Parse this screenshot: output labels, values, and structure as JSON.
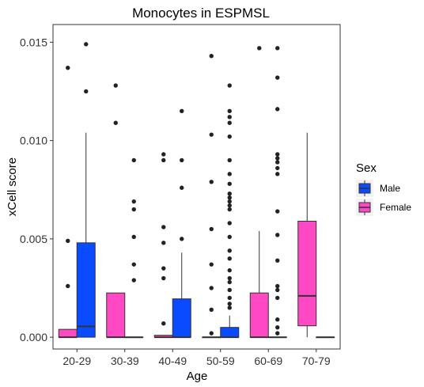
{
  "chart_data": {
    "type": "box",
    "title": "Monocytes in ESPMSL",
    "xlabel": "Age",
    "ylabel": "xCell score",
    "categories": [
      "20-29",
      "30-39",
      "40-49",
      "50-59",
      "60-69",
      "70-79"
    ],
    "ylim": [
      -0.0006,
      0.0159
    ],
    "yticks": [
      0.0,
      0.005,
      0.01,
      0.015
    ],
    "ytick_labels": [
      "0.000",
      "0.005",
      "0.010",
      "0.015"
    ],
    "grid": false,
    "legend": {
      "title": "Sex",
      "position": "right",
      "entries": [
        "Male",
        "Female"
      ]
    },
    "colors": {
      "Male": "#0a4bff",
      "Female": "#ff48c4"
    },
    "series": [
      {
        "name": "Female",
        "boxes": [
          {
            "category": "20-29",
            "q1": 0.0,
            "median": 0.0,
            "q3": 0.0004,
            "whisker_low": 0.0,
            "whisker_high": 0.0004,
            "outliers": [
              0.0026,
              0.0049,
              0.0137
            ]
          },
          {
            "category": "30-39",
            "q1": 0.0,
            "median": 0.0,
            "q3": 0.00225,
            "whisker_low": 0.0,
            "whisker_high": 0.00225,
            "outliers": [
              0.0109,
              0.0128
            ]
          },
          {
            "category": "40-49",
            "q1": 0.0,
            "median": 0.0,
            "q3": 0.0001,
            "whisker_low": 0.0,
            "whisker_high": 0.0001,
            "outliers": [
              0.0007,
              0.003,
              0.0035,
              0.0048,
              0.0056,
              0.009,
              0.0093
            ]
          },
          {
            "category": "50-59",
            "q1": 0.0,
            "median": 0.0,
            "q3": 0.0,
            "whisker_low": 0.0,
            "whisker_high": 0.0,
            "outliers": [
              0.0002,
              0.0014,
              0.0025,
              0.0037,
              0.0055,
              0.0079,
              0.0103,
              0.0143
            ]
          },
          {
            "category": "60-69",
            "q1": 0.0,
            "median": 0.0,
            "q3": 0.00225,
            "whisker_low": 0.0,
            "whisker_high": 0.0054,
            "outliers": [
              0.0147
            ]
          },
          {
            "category": "70-79",
            "q1": 0.00058,
            "median": 0.0021,
            "q3": 0.0059,
            "whisker_low": 0.0,
            "whisker_high": 0.0104,
            "outliers": []
          }
        ]
      },
      {
        "name": "Male",
        "boxes": [
          {
            "category": "20-29",
            "q1": 0.0,
            "median": 0.00055,
            "q3": 0.0048,
            "whisker_low": 0.0,
            "whisker_high": 0.0104,
            "outliers": [
              0.0125,
              0.0149
            ]
          },
          {
            "category": "30-39",
            "q1": 0.0,
            "median": 0.0,
            "q3": 0.0,
            "whisker_low": 0.0,
            "whisker_high": 0.0,
            "outliers": [
              0.0029,
              0.0037,
              0.0051,
              0.0065,
              0.0069,
              0.009
            ]
          },
          {
            "category": "40-49",
            "q1": 0.0,
            "median": 0.0,
            "q3": 0.00195,
            "whisker_low": 0.0,
            "whisker_high": 0.0043,
            "outliers": [
              0.005,
              0.0076,
              0.009,
              0.0115
            ]
          },
          {
            "category": "50-59",
            "q1": 0.0,
            "median": 0.0,
            "q3": 0.0005,
            "whisker_low": 0.0,
            "whisker_high": 0.0011,
            "outliers": [
              0.0015,
              0.0017,
              0.002,
              0.0024,
              0.0028,
              0.003,
              0.0034,
              0.004,
              0.0044,
              0.0051,
              0.0058,
              0.0065,
              0.0067,
              0.0069,
              0.0071,
              0.0073,
              0.0078,
              0.0083,
              0.009,
              0.0102,
              0.0109,
              0.0112,
              0.0115,
              0.0128
            ]
          },
          {
            "category": "60-69",
            "q1": 0.0,
            "median": 0.0,
            "q3": 0.0,
            "whisker_low": 0.0,
            "whisker_high": 0.0,
            "outliers": [
              0.0002,
              0.0005,
              0.0009,
              0.002,
              0.0024,
              0.0026,
              0.0039,
              0.0052,
              0.0064,
              0.0083,
              0.0086,
              0.0089,
              0.0091,
              0.0093,
              0.0116,
              0.0132,
              0.0147
            ]
          },
          {
            "category": "70-79",
            "q1": 0.0,
            "median": 0.0,
            "q3": 0.0,
            "whisker_low": 0.0,
            "whisker_high": 0.0,
            "outliers": []
          }
        ]
      }
    ]
  }
}
